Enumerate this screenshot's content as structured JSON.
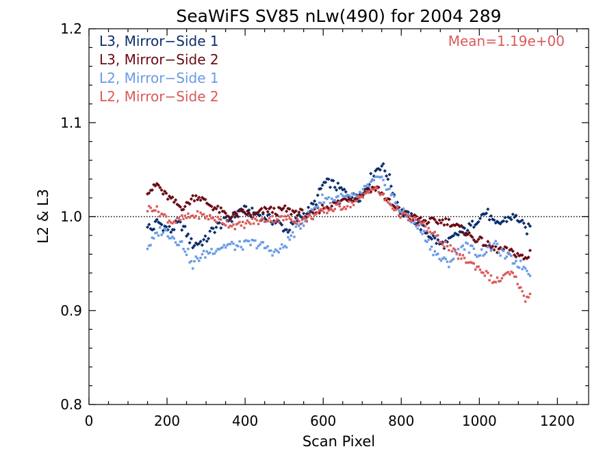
{
  "chart_data": {
    "type": "scatter",
    "title": "SeaWiFS SV85 nLw(490) for 2004 289",
    "xlabel": "Scan Pixel",
    "ylabel": "L2 & L3",
    "xlim": [
      0,
      1280
    ],
    "ylim": [
      0.8,
      1.2
    ],
    "xticks": [
      0,
      200,
      400,
      600,
      800,
      1000,
      1200
    ],
    "xtick_labels": [
      "0",
      "200",
      "400",
      "600",
      "800",
      "1000",
      "1200"
    ],
    "yticks": [
      0.8,
      0.9,
      1.0,
      1.1,
      1.2
    ],
    "ytick_labels": [
      "0.8",
      "0.9",
      "1.0",
      "1.1",
      "1.2"
    ],
    "reference_line": 1.0,
    "grid": false,
    "legend_position": "top-left",
    "annotation": "Mean=1.19e+00",
    "series": [
      {
        "name": "L3, Mirror−Side 1",
        "color": "#0b2d6b",
        "marker": "diamond",
        "anchors": [
          [
            150,
            0.992
          ],
          [
            160,
            0.985
          ],
          [
            175,
            0.995
          ],
          [
            190,
            0.99
          ],
          [
            210,
            0.985
          ],
          [
            225,
            0.992
          ],
          [
            240,
            0.99
          ],
          [
            255,
            0.978
          ],
          [
            265,
            0.97
          ],
          [
            280,
            0.972
          ],
          [
            300,
            0.975
          ],
          [
            315,
            0.985
          ],
          [
            330,
            0.99
          ],
          [
            350,
            0.995
          ],
          [
            370,
            1.0
          ],
          [
            390,
            1.008
          ],
          [
            410,
            1.005
          ],
          [
            430,
            1.003
          ],
          [
            450,
            1.0
          ],
          [
            470,
            0.996
          ],
          [
            490,
            0.992
          ],
          [
            505,
            0.985
          ],
          [
            520,
            0.99
          ],
          [
            540,
            1.0
          ],
          [
            560,
            1.005
          ],
          [
            580,
            1.015
          ],
          [
            600,
            1.035
          ],
          [
            620,
            1.036
          ],
          [
            640,
            1.03
          ],
          [
            660,
            1.025
          ],
          [
            680,
            1.02
          ],
          [
            700,
            1.022
          ],
          [
            720,
            1.04
          ],
          [
            740,
            1.052
          ],
          [
            750,
            1.055
          ],
          [
            770,
            1.04
          ],
          [
            780,
            1.025
          ],
          [
            800,
            1.005
          ],
          [
            820,
            1.0
          ],
          [
            840,
            0.995
          ],
          [
            860,
            0.985
          ],
          [
            880,
            0.978
          ],
          [
            900,
            0.97
          ],
          [
            920,
            0.972
          ],
          [
            940,
            0.98
          ],
          [
            960,
            0.985
          ],
          [
            980,
            0.99
          ],
          [
            1000,
            1.0
          ],
          [
            1020,
            1.005
          ],
          [
            1040,
            0.99
          ],
          [
            1060,
            0.995
          ],
          [
            1080,
            1.0
          ],
          [
            1100,
            0.998
          ],
          [
            1120,
            0.985
          ],
          [
            1132,
            0.99
          ]
        ],
        "noise": 0.005
      },
      {
        "name": "L3, Mirror−Side 2",
        "color": "#6b0a13",
        "marker": "diamond",
        "anchors": [
          [
            150,
            1.028
          ],
          [
            165,
            1.03
          ],
          [
            175,
            1.035
          ],
          [
            190,
            1.025
          ],
          [
            205,
            1.02
          ],
          [
            220,
            1.015
          ],
          [
            235,
            1.01
          ],
          [
            250,
            1.012
          ],
          [
            265,
            1.02
          ],
          [
            280,
            1.022
          ],
          [
            300,
            1.015
          ],
          [
            320,
            1.01
          ],
          [
            340,
            1.005
          ],
          [
            360,
            1.0
          ],
          [
            380,
            1.002
          ],
          [
            400,
            1.005
          ],
          [
            420,
            1.0
          ],
          [
            440,
            1.005
          ],
          [
            460,
            1.008
          ],
          [
            480,
            1.005
          ],
          [
            500,
            1.008
          ],
          [
            520,
            1.005
          ],
          [
            540,
            1.005
          ],
          [
            560,
            1.0
          ],
          [
            580,
            1.005
          ],
          [
            600,
            1.01
          ],
          [
            620,
            1.012
          ],
          [
            640,
            1.015
          ],
          [
            660,
            1.02
          ],
          [
            680,
            1.02
          ],
          [
            700,
            1.025
          ],
          [
            720,
            1.03
          ],
          [
            740,
            1.03
          ],
          [
            760,
            1.02
          ],
          [
            780,
            1.01
          ],
          [
            800,
            1.005
          ],
          [
            820,
            1.0
          ],
          [
            840,
            0.998
          ],
          [
            860,
            0.995
          ],
          [
            880,
            0.995
          ],
          [
            900,
            0.995
          ],
          [
            920,
            0.995
          ],
          [
            940,
            0.99
          ],
          [
            960,
            0.985
          ],
          [
            980,
            0.978
          ],
          [
            1000,
            0.975
          ],
          [
            1020,
            0.97
          ],
          [
            1040,
            0.965
          ],
          [
            1060,
            0.965
          ],
          [
            1080,
            0.962
          ],
          [
            1100,
            0.96
          ],
          [
            1115,
            0.955
          ],
          [
            1125,
            0.955
          ],
          [
            1132,
            0.97
          ]
        ],
        "noise": 0.004
      },
      {
        "name": "L2, Mirror−Side 1",
        "color": "#6a9ae6",
        "marker": "square",
        "anchors": [
          [
            150,
            0.968
          ],
          [
            165,
            0.975
          ],
          [
            180,
            0.985
          ],
          [
            195,
            0.985
          ],
          [
            210,
            0.98
          ],
          [
            225,
            0.975
          ],
          [
            240,
            0.97
          ],
          [
            255,
            0.96
          ],
          [
            265,
            0.945
          ],
          [
            275,
            0.955
          ],
          [
            290,
            0.958
          ],
          [
            305,
            0.962
          ],
          [
            320,
            0.965
          ],
          [
            340,
            0.968
          ],
          [
            360,
            0.97
          ],
          [
            380,
            0.968
          ],
          [
            400,
            0.97
          ],
          [
            420,
            0.972
          ],
          [
            440,
            0.97
          ],
          [
            460,
            0.965
          ],
          [
            480,
            0.962
          ],
          [
            500,
            0.968
          ],
          [
            520,
            0.98
          ],
          [
            540,
            0.99
          ],
          [
            560,
            1.0
          ],
          [
            580,
            1.01
          ],
          [
            600,
            1.02
          ],
          [
            620,
            1.018
          ],
          [
            640,
            1.02
          ],
          [
            660,
            1.02
          ],
          [
            680,
            1.02
          ],
          [
            700,
            1.025
          ],
          [
            720,
            1.035
          ],
          [
            740,
            1.04
          ],
          [
            760,
            1.035
          ],
          [
            780,
            1.02
          ],
          [
            800,
            1.005
          ],
          [
            820,
            1.0
          ],
          [
            840,
            0.99
          ],
          [
            860,
            0.98
          ],
          [
            880,
            0.965
          ],
          [
            900,
            0.955
          ],
          [
            920,
            0.95
          ],
          [
            940,
            0.96
          ],
          [
            960,
            0.97
          ],
          [
            980,
            0.965
          ],
          [
            1000,
            0.96
          ],
          [
            1020,
            0.965
          ],
          [
            1040,
            0.97
          ],
          [
            1060,
            0.96
          ],
          [
            1080,
            0.955
          ],
          [
            1100,
            0.95
          ],
          [
            1120,
            0.945
          ],
          [
            1132,
            0.94
          ]
        ],
        "noise": 0.005
      },
      {
        "name": "L2, Mirror−Side 2",
        "color": "#d95a5a",
        "marker": "square",
        "anchors": [
          [
            150,
            1.008
          ],
          [
            165,
            1.01
          ],
          [
            180,
            1.005
          ],
          [
            195,
            1.0
          ],
          [
            210,
            0.995
          ],
          [
            225,
            0.995
          ],
          [
            240,
            0.998
          ],
          [
            260,
            1.0
          ],
          [
            280,
            1.002
          ],
          [
            300,
            1.0
          ],
          [
            320,
            0.998
          ],
          [
            340,
            0.995
          ],
          [
            360,
            0.992
          ],
          [
            380,
            0.99
          ],
          [
            400,
            0.992
          ],
          [
            420,
            0.995
          ],
          [
            440,
            0.995
          ],
          [
            460,
            0.998
          ],
          [
            480,
            0.997
          ],
          [
            500,
            0.998
          ],
          [
            520,
            0.998
          ],
          [
            540,
            0.995
          ],
          [
            560,
            0.998
          ],
          [
            580,
            1.002
          ],
          [
            600,
            1.005
          ],
          [
            620,
            1.008
          ],
          [
            640,
            1.01
          ],
          [
            660,
            1.012
          ],
          [
            680,
            1.015
          ],
          [
            700,
            1.02
          ],
          [
            720,
            1.03
          ],
          [
            740,
            1.028
          ],
          [
            760,
            1.018
          ],
          [
            780,
            1.01
          ],
          [
            800,
            1.002
          ],
          [
            820,
            0.998
          ],
          [
            840,
            0.995
          ],
          [
            860,
            0.99
          ],
          [
            880,
            0.982
          ],
          [
            900,
            0.975
          ],
          [
            920,
            0.968
          ],
          [
            940,
            0.96
          ],
          [
            960,
            0.955
          ],
          [
            980,
            0.95
          ],
          [
            1000,
            0.945
          ],
          [
            1020,
            0.938
          ],
          [
            1040,
            0.93
          ],
          [
            1060,
            0.935
          ],
          [
            1080,
            0.94
          ],
          [
            1100,
            0.93
          ],
          [
            1110,
            0.918
          ],
          [
            1120,
            0.912
          ],
          [
            1132,
            0.92
          ]
        ],
        "noise": 0.004
      }
    ]
  }
}
